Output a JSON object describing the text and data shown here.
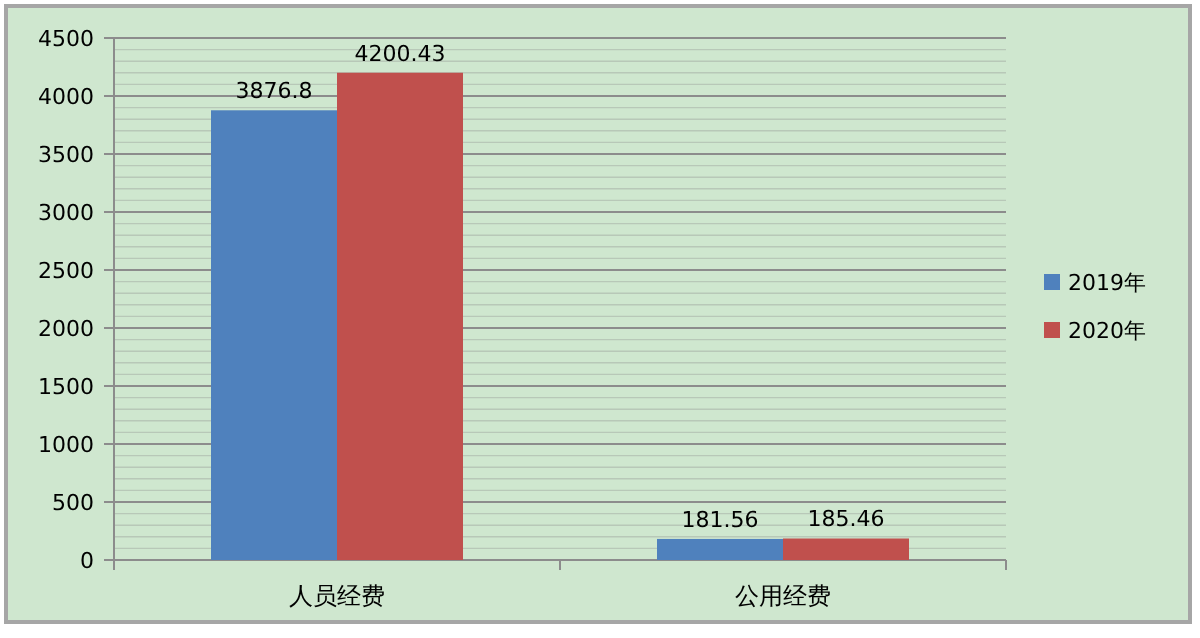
{
  "chart_data": {
    "type": "bar",
    "categories": [
      "人员经费",
      "公用经费"
    ],
    "series": [
      {
        "name": "2019年",
        "color": "#4f81bd",
        "values": [
          3876.8,
          181.56
        ]
      },
      {
        "name": "2020年",
        "color": "#c0504d",
        "values": [
          4200.43,
          185.46
        ]
      }
    ],
    "ylim": [
      0,
      4500
    ],
    "yticks": [
      0,
      {
        "value": 100,
        "label": null
      },
      {
        "value": 200,
        "label": null
      },
      {
        "value": 300,
        "label": null
      },
      {
        "value": 400,
        "label": null
      },
      500,
      {
        "value": 600,
        "label": null
      },
      {
        "value": 700,
        "label": null
      },
      {
        "value": 800,
        "label": null
      },
      {
        "value": 900,
        "label": null
      },
      1000,
      {
        "value": 1100,
        "label": null
      },
      {
        "value": 1200,
        "label": null
      },
      {
        "value": 1300,
        "label": null
      },
      {
        "value": 1400,
        "label": null
      },
      1500,
      {
        "value": 1600,
        "label": null
      },
      {
        "value": 1700,
        "label": null
      },
      {
        "value": 1800,
        "label": null
      },
      {
        "value": 1900,
        "label": null
      },
      2000,
      {
        "value": 2100,
        "label": null
      },
      {
        "value": 2200,
        "label": null
      },
      {
        "value": 2300,
        "label": null
      },
      {
        "value": 2400,
        "label": null
      },
      2500,
      {
        "value": 2600,
        "label": null
      },
      {
        "value": 2700,
        "label": null
      },
      {
        "value": 2800,
        "label": null
      },
      {
        "value": 2900,
        "label": null
      },
      3000,
      {
        "value": 3100,
        "label": null
      },
      {
        "value": 3200,
        "label": null
      },
      {
        "value": 3300,
        "label": null
      },
      {
        "value": 3400,
        "label": null
      },
      3500,
      {
        "value": 3600,
        "label": null
      },
      {
        "value": 3700,
        "label": null
      },
      {
        "value": 3800,
        "label": null
      },
      {
        "value": 3900,
        "label": null
      },
      4000,
      {
        "value": 4100,
        "label": null
      },
      {
        "value": 4200,
        "label": null
      },
      {
        "value": 4300,
        "label": null
      },
      {
        "value": 4400,
        "label": null
      },
      4500
    ],
    "grid": "y",
    "legend": "right",
    "data_labels": true
  }
}
